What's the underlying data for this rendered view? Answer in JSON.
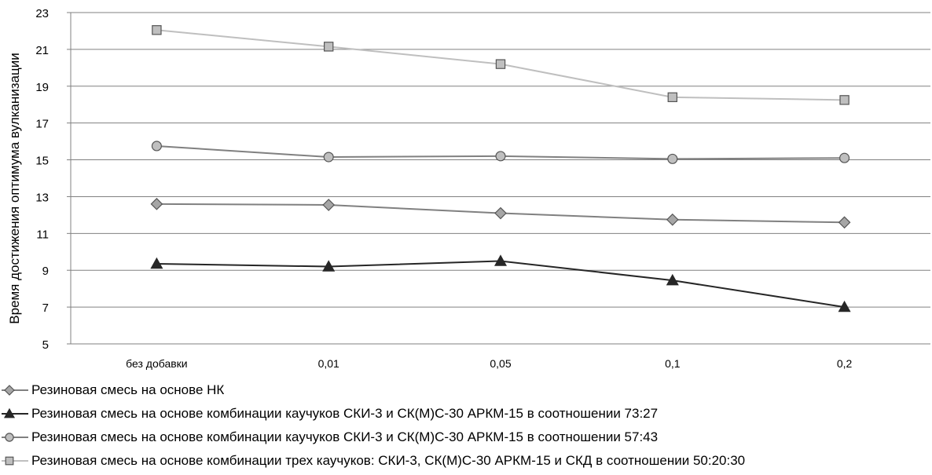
{
  "chart_data": {
    "type": "line",
    "title": "",
    "xlabel": "",
    "ylabel": "Время достижения оптимума вулканизации",
    "categories": [
      "без добавки",
      "0,01",
      "0,05",
      "0,1",
      "0,2"
    ],
    "ylim": [
      5,
      23
    ],
    "yticks": [
      "5",
      "7",
      "9",
      "11",
      "13",
      "15",
      "17",
      "19",
      "21",
      "23"
    ],
    "grid": true,
    "legend_position": "bottom",
    "series": [
      {
        "name": "Резиновая смесь на основе НК",
        "values": [
          12.6,
          12.55,
          12.1,
          11.75,
          11.6
        ],
        "marker": "diamond",
        "color": "#808080",
        "fill": "#a6a6a6"
      },
      {
        "name": "Резиновая смесь на основе комбинации каучуков СКИ-3 и СК(М)С-30 АРКМ-15 в соотношении 73:27",
        "values": [
          9.35,
          9.2,
          9.5,
          8.45,
          7.0
        ],
        "marker": "triangle",
        "color": "#262626",
        "fill": "#262626"
      },
      {
        "name": "Резиновая смесь на основе комбинации каучуков СКИ-3 и СК(М)С-30 АРКМ-15 в соотношении 57:43",
        "values": [
          15.75,
          15.15,
          15.2,
          15.05,
          15.1
        ],
        "marker": "circle",
        "color": "#808080",
        "fill": "#bfbfbf"
      },
      {
        "name": "Резиновая смесь на основе комбинации трех каучуков: СКИ-3, СК(М)С-30 АРКМ-15 и СКД в соотношении 50:20:30",
        "values": [
          22.05,
          21.15,
          20.2,
          18.4,
          18.25
        ],
        "marker": "square",
        "color": "#bfbfbf",
        "fill": "#bfbfbf"
      }
    ]
  }
}
